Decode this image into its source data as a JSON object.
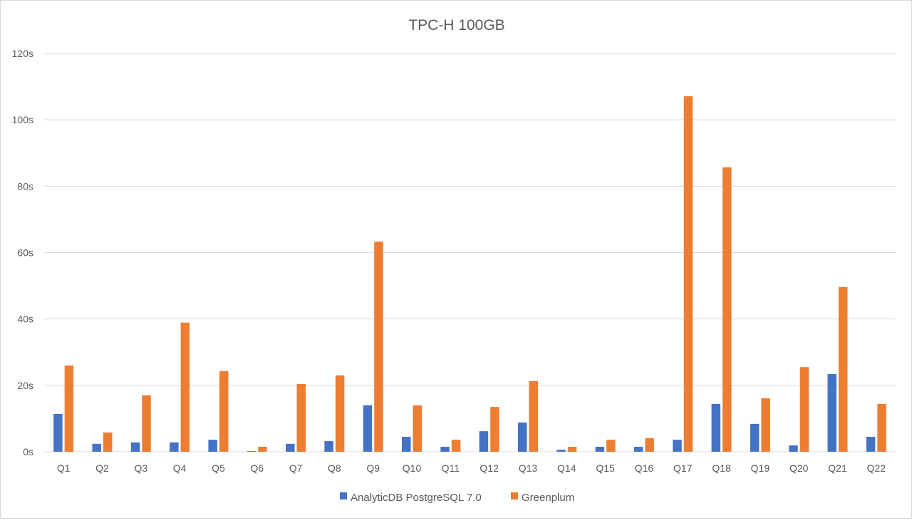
{
  "chart_data": {
    "type": "bar",
    "title": "TPC-H 100GB",
    "xlabel": "",
    "ylabel": "",
    "ylim": [
      0,
      120
    ],
    "yticks": [
      "0s",
      "20s",
      "40s",
      "60s",
      "80s",
      "100s",
      "120s"
    ],
    "grid": true,
    "legend_position": "bottom",
    "categories": [
      "Q1",
      "Q2",
      "Q3",
      "Q4",
      "Q5",
      "Q6",
      "Q7",
      "Q8",
      "Q9",
      "Q10",
      "Q11",
      "Q12",
      "Q13",
      "Q14",
      "Q15",
      "Q16",
      "Q17",
      "Q18",
      "Q19",
      "Q20",
      "Q21",
      "Q22"
    ],
    "series": [
      {
        "name": "AnalyticDB PostgreSQL 7.0",
        "color": "#4472C4",
        "values": [
          11.4,
          2.4,
          2.8,
          2.8,
          3.6,
          0.2,
          2.4,
          3.2,
          14.0,
          4.5,
          1.5,
          6.2,
          8.8,
          0.6,
          1.5,
          1.5,
          3.6,
          14.4,
          8.4,
          1.9,
          23.4,
          4.5
        ]
      },
      {
        "name": "Greenplum",
        "color": "#ED7D31",
        "values": [
          26.0,
          5.8,
          17.0,
          38.9,
          24.3,
          1.5,
          20.4,
          23.0,
          63.3,
          14.0,
          3.6,
          13.5,
          21.3,
          1.5,
          3.6,
          4.1,
          107.1,
          85.7,
          16.1,
          25.5,
          49.6,
          14.4
        ]
      }
    ]
  }
}
